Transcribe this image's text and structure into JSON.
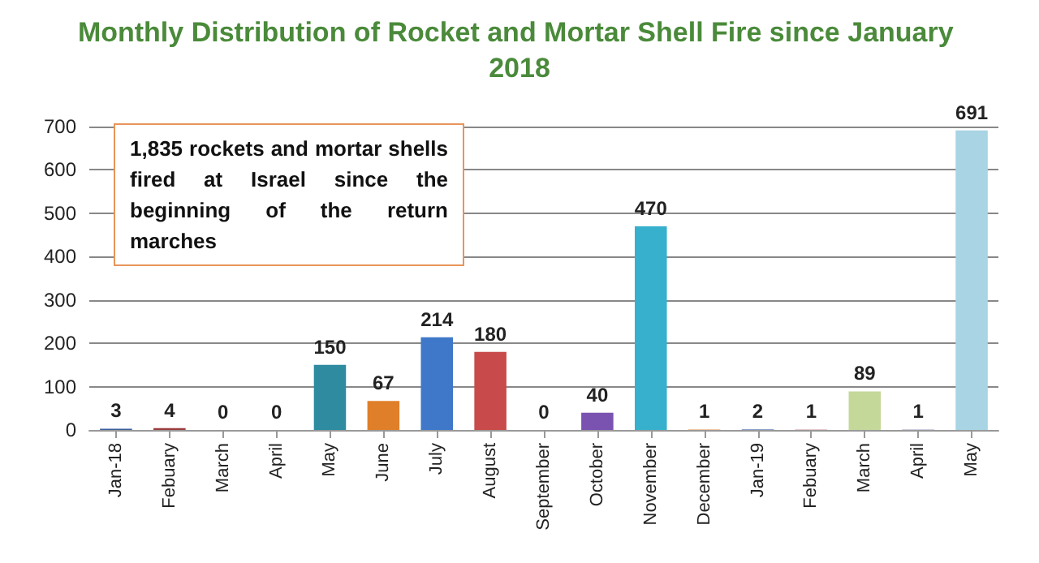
{
  "chart_data": {
    "type": "bar",
    "title": "Monthly Distribution of Rocket and Mortar Shell Fire since January 2018",
    "categories": [
      "Jan-18",
      "Febuary",
      "March",
      "April",
      "May",
      "June",
      "July",
      "August",
      "September",
      "October",
      "November",
      "December",
      "Jan-19",
      "Febuary",
      "March",
      "April",
      "May"
    ],
    "values": [
      3,
      4,
      0,
      0,
      150,
      67,
      214,
      180,
      0,
      40,
      470,
      1,
      2,
      1,
      89,
      1,
      691
    ],
    "colors": [
      "#3a5f9a",
      "#9b3b3b",
      "#7a9a3a",
      "#5a3f80",
      "#2e8ba0",
      "#e07f2a",
      "#3f78c8",
      "#c84a4a",
      "#8aa84a",
      "#7a52b0",
      "#36b0cc",
      "#e08a40",
      "#8c9fc8",
      "#c89098",
      "#c4d89a",
      "#9a9ac0",
      "#a8d4e4"
    ],
    "ylim": [
      0,
      700
    ],
    "yticks": [
      0,
      100,
      200,
      300,
      400,
      500,
      600,
      700
    ],
    "grid": "y",
    "data_labels": true,
    "annotations": [
      "1,835 rockets and mortar shells fired at Israel since the beginning of the return marches"
    ]
  }
}
